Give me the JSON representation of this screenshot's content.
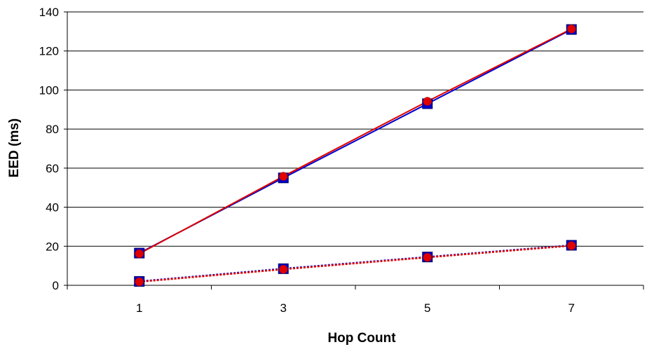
{
  "chart_data": {
    "type": "line",
    "title": "",
    "xlabel": "Hop Count",
    "ylabel": "EED (ms)",
    "categories": [
      "1",
      "3",
      "5",
      "7"
    ],
    "ylim": [
      0,
      140
    ],
    "y_ticks": [
      0,
      20,
      40,
      60,
      80,
      100,
      120,
      140
    ],
    "grid": "horizontal",
    "legend": "none",
    "series": [
      {
        "color": "#0000cc",
        "marker": "square",
        "line_style": "solid",
        "values": [
          16.5,
          55,
          93,
          131
        ]
      },
      {
        "color": "#e00000",
        "marker": "circle",
        "line_style": "solid",
        "values": [
          16.2,
          55.8,
          94.2,
          131.3
        ]
      },
      {
        "color": "#0000cc",
        "marker": "square",
        "line_style": "dotted",
        "values": [
          2,
          8.5,
          14.5,
          20.5
        ]
      },
      {
        "color": "#e00000",
        "marker": "circle",
        "line_style": "dotted",
        "values": [
          1.8,
          8.2,
          14.3,
          20.3
        ]
      }
    ]
  }
}
